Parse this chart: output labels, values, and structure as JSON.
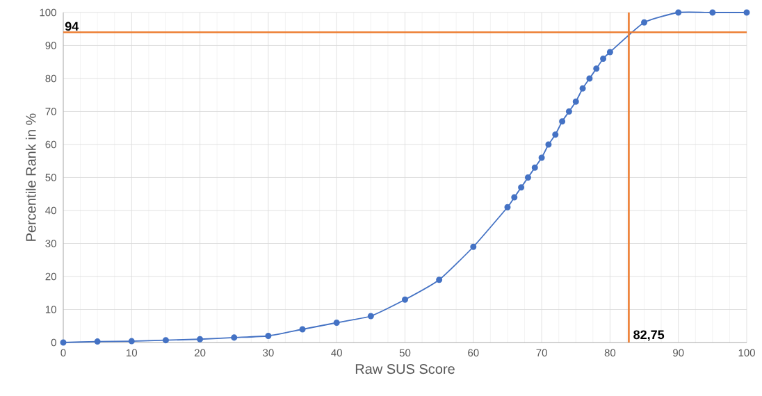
{
  "chart_data": {
    "type": "line",
    "xlabel": "Raw SUS Score",
    "ylabel": "Percentile Rank in %",
    "x": [
      0,
      5,
      10,
      15,
      20,
      25,
      30,
      35,
      40,
      45,
      50,
      55,
      60,
      65,
      66,
      67,
      68,
      69,
      70,
      71,
      72,
      73,
      74,
      75,
      76,
      77,
      78,
      79,
      80,
      85,
      90,
      95,
      100
    ],
    "series": [
      {
        "color": "#4472c4",
        "values": [
          0,
          0.3,
          0.4,
          0.7,
          1,
          1.5,
          2,
          4,
          6,
          8,
          13,
          19,
          29,
          41,
          44,
          47,
          50,
          53,
          56,
          60,
          63,
          67,
          70,
          73,
          77,
          80,
          83,
          86,
          88,
          97,
          100,
          100,
          100
        ]
      }
    ],
    "xlim": [
      0,
      100
    ],
    "ylim": [
      0,
      100
    ],
    "xticks": [
      0,
      10,
      20,
      30,
      40,
      50,
      60,
      70,
      80,
      90,
      100
    ],
    "yticks": [
      0,
      10,
      20,
      30,
      40,
      50,
      60,
      70,
      80,
      90,
      100
    ],
    "grid": true,
    "marker": "circle",
    "line_style": "solid",
    "ref_lines": [
      {
        "axis": "y",
        "value": 94,
        "label": "94",
        "color": "#ed7d31"
      },
      {
        "axis": "x",
        "value": 82.75,
        "label": "82,75",
        "color": "#ed7d31"
      }
    ]
  }
}
